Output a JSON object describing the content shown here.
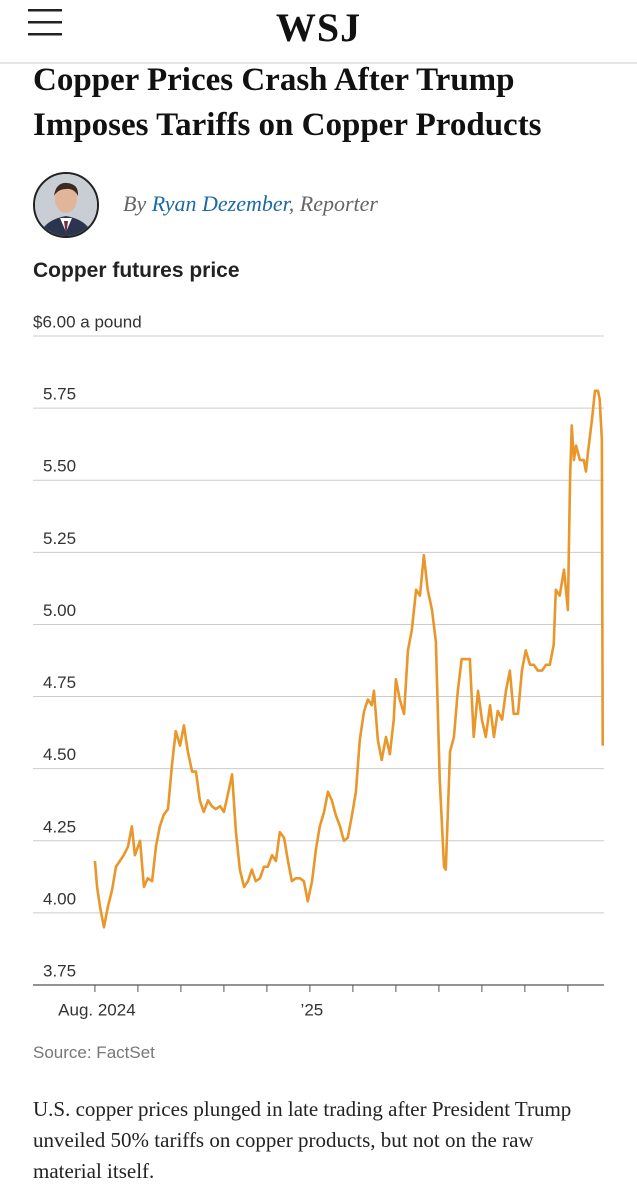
{
  "header": {
    "brand": "WSJ"
  },
  "article": {
    "title": "Copper Prices Crash After Trump Imposes Tariffs on Copper Products",
    "byline": {
      "prefix": "By",
      "author": "Ryan Dezember",
      "suffix": ", Reporter"
    },
    "caption": "U.S. copper prices plunged in late trading after President Trump unveiled 50% tariffs on copper products, but not on the raw material itself."
  },
  "chart_data": {
    "type": "line",
    "title": "Copper futures price",
    "source": "Source: FactSet",
    "color": "#e9962b",
    "grid": true,
    "ylim": [
      3.75,
      6
    ],
    "yticks": [
      3.75,
      {
        "value": 4,
        "label": "4.00"
      },
      4.25,
      {
        "value": 4.5,
        "label": "4.50"
      },
      4.75,
      {
        "value": 5,
        "label": "5.00"
      },
      5.25,
      {
        "value": 5.5,
        "label": "5.50"
      },
      5.75,
      {
        "value": 6,
        "label": "$6.00 a pound"
      }
    ],
    "xlim": [
      -1.44,
      11.84
    ],
    "xticks": [
      {
        "value": 0,
        "label": "Aug. 2024"
      },
      {
        "value": 5,
        "label": "’25"
      }
    ],
    "xminor_ticks": [
      1,
      2,
      3,
      4,
      6,
      7,
      8,
      9,
      10,
      11
    ],
    "x": [
      0,
      0.05,
      0.12,
      0.21,
      0.3,
      0.4,
      0.49,
      0.58,
      0.67,
      0.77,
      0.86,
      0.93,
      1.05,
      1.14,
      1.23,
      1.33,
      1.42,
      1.51,
      1.6,
      1.7,
      1.79,
      1.88,
      1.98,
      2.07,
      2.16,
      2.26,
      2.35,
      2.44,
      2.53,
      2.63,
      2.72,
      2.81,
      2.91,
      3.0,
      3.09,
      3.19,
      3.28,
      3.37,
      3.47,
      3.56,
      3.65,
      3.74,
      3.84,
      3.93,
      4.02,
      4.12,
      4.21,
      4.3,
      4.4,
      4.49,
      4.58,
      4.67,
      4.77,
      4.86,
      4.95,
      5.05,
      5.14,
      5.23,
      5.33,
      5.42,
      5.51,
      5.6,
      5.7,
      5.79,
      5.88,
      5.98,
      6.07,
      6.16,
      6.26,
      6.35,
      6.44,
      6.49,
      6.58,
      6.67,
      6.77,
      6.86,
      6.95,
      7.0,
      7.09,
      7.19,
      7.28,
      7.37,
      7.47,
      7.56,
      7.65,
      7.74,
      7.84,
      7.93,
      8.02,
      8.12,
      8.16,
      8.26,
      8.35,
      8.44,
      8.53,
      8.63,
      8.72,
      8.81,
      8.91,
      9.0,
      9.09,
      9.19,
      9.28,
      9.37,
      9.47,
      9.56,
      9.65,
      9.74,
      9.84,
      9.93,
      10.02,
      10.12,
      10.21,
      10.3,
      10.4,
      10.49,
      10.58,
      10.67,
      10.72,
      10.81,
      10.91,
      11.0,
      11.05,
      11.09,
      11.14,
      11.19,
      11.28,
      11.37,
      11.42,
      11.47,
      11.56,
      11.63,
      11.7,
      11.74,
      11.79,
      11.81
    ],
    "values": [
      4.18,
      4.09,
      4.02,
      3.95,
      4.02,
      4.08,
      4.16,
      4.18,
      4.2,
      4.23,
      4.3,
      4.2,
      4.25,
      4.09,
      4.12,
      4.11,
      4.23,
      4.3,
      4.34,
      4.36,
      4.51,
      4.63,
      4.58,
      4.65,
      4.56,
      4.49,
      4.49,
      4.39,
      4.35,
      4.39,
      4.37,
      4.36,
      4.37,
      4.35,
      4.41,
      4.48,
      4.28,
      4.15,
      4.09,
      4.11,
      4.15,
      4.11,
      4.12,
      4.16,
      4.16,
      4.2,
      4.18,
      4.28,
      4.26,
      4.18,
      4.11,
      4.12,
      4.12,
      4.11,
      4.04,
      4.11,
      4.22,
      4.3,
      4.35,
      4.42,
      4.39,
      4.34,
      4.3,
      4.25,
      4.26,
      4.34,
      4.42,
      4.6,
      4.7,
      4.74,
      4.72,
      4.77,
      4.6,
      4.53,
      4.61,
      4.55,
      4.67,
      4.81,
      4.74,
      4.69,
      4.91,
      4.98,
      5.12,
      5.1,
      5.24,
      5.12,
      5.05,
      4.94,
      4.46,
      4.16,
      4.15,
      4.56,
      4.61,
      4.77,
      4.88,
      4.88,
      4.88,
      4.61,
      4.77,
      4.67,
      4.61,
      4.72,
      4.61,
      4.7,
      4.67,
      4.77,
      4.84,
      4.69,
      4.69,
      4.84,
      4.91,
      4.86,
      4.86,
      4.84,
      4.84,
      4.86,
      4.86,
      4.93,
      5.12,
      5.1,
      5.19,
      5.05,
      5.5,
      5.69,
      5.57,
      5.62,
      5.57,
      5.57,
      5.53,
      5.6,
      5.71,
      5.81,
      5.81,
      5.78,
      5.64,
      4.58
    ]
  }
}
